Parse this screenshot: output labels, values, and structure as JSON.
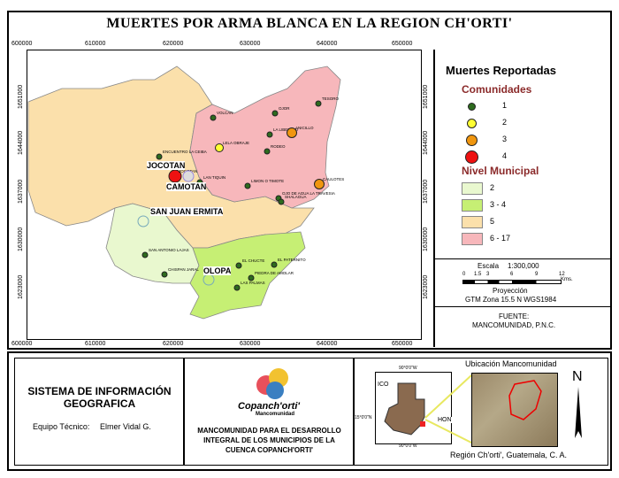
{
  "title": "MUERTES POR ARMA BLANCA EN LA REGION CH'ORTI'",
  "axes": {
    "x_ticks": [
      "600000",
      "610000",
      "620000",
      "630000",
      "640000",
      "650000"
    ],
    "y_ticks": [
      "1651000",
      "1644000",
      "1637000",
      "1630000",
      "1623000"
    ]
  },
  "municipios": [
    "JOCOTAN",
    "CAMOTAN",
    "SAN JUAN ERMITA",
    "OLOPA"
  ],
  "comunidades": [
    {
      "name": "TESORO",
      "muertes": 1
    },
    {
      "name": "OJOR",
      "muertes": 1
    },
    {
      "name": "VOLCAN",
      "muertes": 1
    },
    {
      "name": "LA LIBERTAD",
      "muertes": 1
    },
    {
      "name": "ANICILLO",
      "muertes": 3
    },
    {
      "name": "LELA OBRAJE",
      "muertes": 2
    },
    {
      "name": "RODEO",
      "muertes": 1
    },
    {
      "name": "ENCUENTRO LA CEIBA",
      "muertes": 1
    },
    {
      "name": "JOCOTAN",
      "muertes": 4
    },
    {
      "name": "LAN TIQUIN",
      "muertes": 1
    },
    {
      "name": "LIMON O TIMOTE",
      "muertes": 1
    },
    {
      "name": "CAULOTES",
      "muertes": 3
    },
    {
      "name": "OJO DE AGUA LA TRAVESIA",
      "muertes": 1
    },
    {
      "name": "SHALAGUA",
      "muertes": 1
    },
    {
      "name": "SAN ANTONIO LAJAS",
      "muertes": 1
    },
    {
      "name": "CHISPAN JARAL",
      "muertes": 1
    },
    {
      "name": "EL CHUCTE",
      "muertes": 1
    },
    {
      "name": "PIEDRA DE AMOLAR",
      "muertes": 1
    },
    {
      "name": "LAS PALMAS",
      "muertes": 1
    },
    {
      "name": "EL PATERNITO",
      "muertes": 1
    }
  ],
  "legend": {
    "title": "Muertes Reportadas",
    "comunidades_title": "Comunidades",
    "comunidades": [
      {
        "label": "1",
        "color": "#2e6b1e"
      },
      {
        "label": "2",
        "color": "#ffff33"
      },
      {
        "label": "3",
        "color": "#f0960f"
      },
      {
        "label": "4",
        "color": "#ee1111"
      }
    ],
    "nivel_title": "Nivel Municipal",
    "nivel": [
      {
        "label": "2",
        "color": "#e9f8cf"
      },
      {
        "label": "3 - 4",
        "color": "#c6ef74"
      },
      {
        "label": "5",
        "color": "#fbe0ab"
      },
      {
        "label": "6 - 17",
        "color": "#f7b7bb"
      }
    ]
  },
  "scale": {
    "label": "Escala",
    "value": "1:300,000",
    "ticks": [
      "0",
      "1.5",
      "3",
      "6",
      "9",
      "12"
    ],
    "unit": "Kms.",
    "proj_label": "Proyección",
    "proj": "GTM Zona 15.5 N WGS1984"
  },
  "source": {
    "label": "FUENTE:",
    "value": "MANCOMUNIDAD, P.N.C."
  },
  "footer": {
    "sys_title": "SISTEMA DE INFORMACIÓN GEOGRAFICA",
    "team_label": "Equipo Técnico:",
    "team": "Elmer Vidal G.",
    "logo": "Copanch'orti'",
    "logo_sub": "Mancomunidad",
    "org": "MANCOMUNIDAD PARA EL DESARROLLO INTEGRAL DE LOS MUNICIPIOS DE LA CUENCA COPANCH'ORTI'",
    "loc_title": "Ubicación Mancomunidad",
    "loc_caption": "Región Ch'orti', Guatemala, C. A.",
    "coord_lon": "90°0'0\"W",
    "coord_lat": "15°0'0\"N",
    "neighbor1": "ICO",
    "neighbor2": "HON",
    "north": "N"
  }
}
